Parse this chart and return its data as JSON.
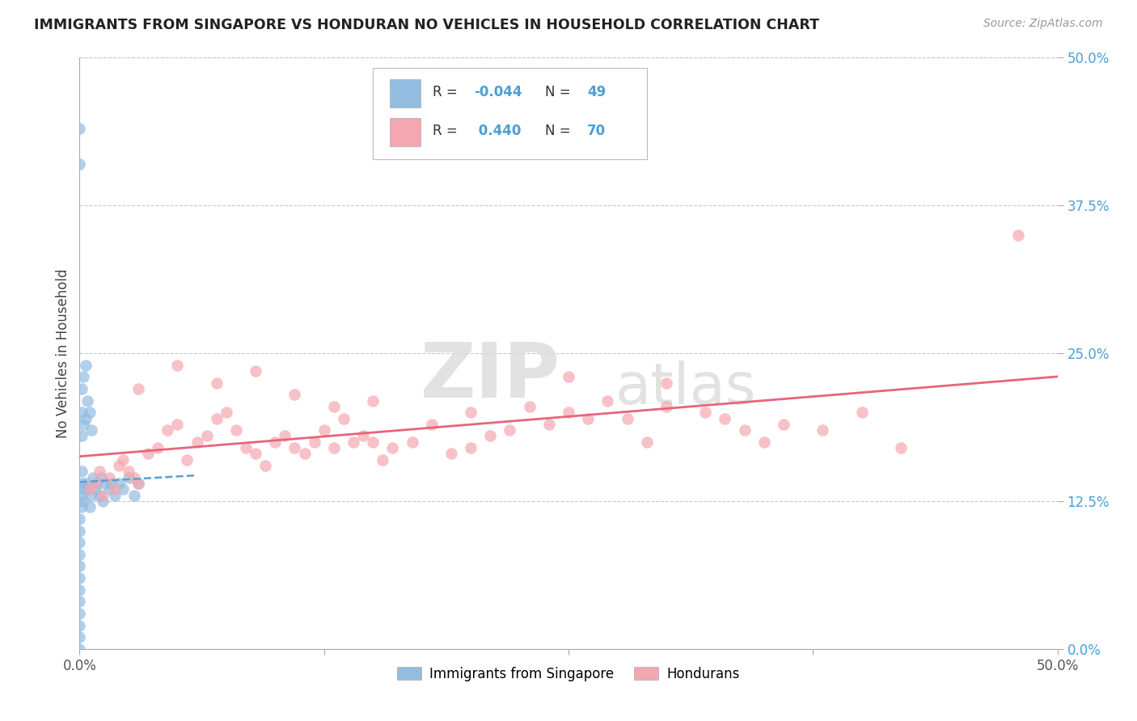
{
  "title": "IMMIGRANTS FROM SINGAPORE VS HONDURAN NO VEHICLES IN HOUSEHOLD CORRELATION CHART",
  "source": "Source: ZipAtlas.com",
  "ylabel": "No Vehicles in Household",
  "legend_label1": "Immigrants from Singapore",
  "legend_label2": "Hondurans",
  "r1": "-0.044",
  "n1": "49",
  "r2": "0.440",
  "n2": "70",
  "color_blue": "#92bce0",
  "color_pink": "#f4a7b0",
  "color_line_blue": "#5a9fd4",
  "color_line_pink": "#e8647a",
  "watermark_zip": "ZIP",
  "watermark_atlas": "atlas",
  "background_color": "#ffffff",
  "grid_color": "#c8c8c8",
  "singapore_x": [
    0.0,
    0.0,
    0.0,
    0.0,
    0.0,
    0.0,
    0.0,
    0.0,
    0.0,
    0.0,
    0.0,
    0.0,
    0.1,
    0.1,
    0.1,
    0.1,
    0.1,
    0.1,
    0.1,
    0.2,
    0.2,
    0.2,
    0.2,
    0.3,
    0.3,
    0.3,
    0.4,
    0.4,
    0.5,
    0.5,
    0.6,
    0.6,
    0.7,
    0.8,
    0.9,
    1.0,
    1.1,
    1.2,
    1.3,
    1.5,
    1.6,
    1.8,
    2.0,
    2.2,
    2.5,
    2.8,
    3.0,
    0.0,
    0.0
  ],
  "singapore_y": [
    0.0,
    1.0,
    2.0,
    3.0,
    4.0,
    5.0,
    6.0,
    7.0,
    8.0,
    9.0,
    10.0,
    11.0,
    12.0,
    13.0,
    14.0,
    15.0,
    18.0,
    20.0,
    22.0,
    12.5,
    13.5,
    19.0,
    23.0,
    14.0,
    19.5,
    24.0,
    13.5,
    21.0,
    12.0,
    20.0,
    13.0,
    18.5,
    14.5,
    13.5,
    14.0,
    13.0,
    14.5,
    12.5,
    14.0,
    13.5,
    14.0,
    13.0,
    14.0,
    13.5,
    14.5,
    13.0,
    14.0,
    41.0,
    44.0
  ],
  "honduran_x": [
    0.5,
    0.8,
    1.0,
    1.2,
    1.5,
    1.8,
    2.0,
    2.2,
    2.5,
    2.8,
    3.0,
    3.5,
    4.0,
    4.5,
    5.0,
    5.5,
    6.0,
    6.5,
    7.0,
    7.5,
    8.0,
    8.5,
    9.0,
    9.5,
    10.0,
    10.5,
    11.0,
    11.5,
    12.0,
    12.5,
    13.0,
    13.5,
    14.0,
    14.5,
    15.0,
    15.5,
    16.0,
    17.0,
    18.0,
    19.0,
    20.0,
    21.0,
    22.0,
    23.0,
    24.0,
    25.0,
    26.0,
    27.0,
    28.0,
    29.0,
    30.0,
    32.0,
    33.0,
    34.0,
    35.0,
    36.0,
    38.0,
    40.0,
    42.0,
    48.0,
    3.0,
    5.0,
    7.0,
    9.0,
    11.0,
    13.0,
    15.0,
    20.0,
    25.0,
    30.0
  ],
  "honduran_y": [
    13.5,
    14.0,
    15.0,
    13.0,
    14.5,
    13.5,
    15.5,
    16.0,
    15.0,
    14.5,
    14.0,
    16.5,
    17.0,
    18.5,
    19.0,
    16.0,
    17.5,
    18.0,
    19.5,
    20.0,
    18.5,
    17.0,
    16.5,
    15.5,
    17.5,
    18.0,
    17.0,
    16.5,
    17.5,
    18.5,
    17.0,
    19.5,
    17.5,
    18.0,
    17.5,
    16.0,
    17.0,
    17.5,
    19.0,
    16.5,
    17.0,
    18.0,
    18.5,
    20.5,
    19.0,
    20.0,
    19.5,
    21.0,
    19.5,
    17.5,
    20.5,
    20.0,
    19.5,
    18.5,
    17.5,
    19.0,
    18.5,
    20.0,
    17.0,
    35.0,
    22.0,
    24.0,
    22.5,
    23.5,
    21.5,
    20.5,
    21.0,
    20.0,
    23.0,
    22.5
  ],
  "xlim": [
    0.0,
    50.0
  ],
  "ylim": [
    0.0,
    50.0
  ],
  "xticks": [
    0.0,
    50.0
  ],
  "xticklabels": [
    "0.0%",
    "50.0%"
  ],
  "yticks": [
    0.0,
    12.5,
    25.0,
    37.5,
    50.0
  ],
  "yticklabels": [
    "0.0%",
    "12.5%",
    "25.0%",
    "37.5%",
    "50.0%"
  ]
}
